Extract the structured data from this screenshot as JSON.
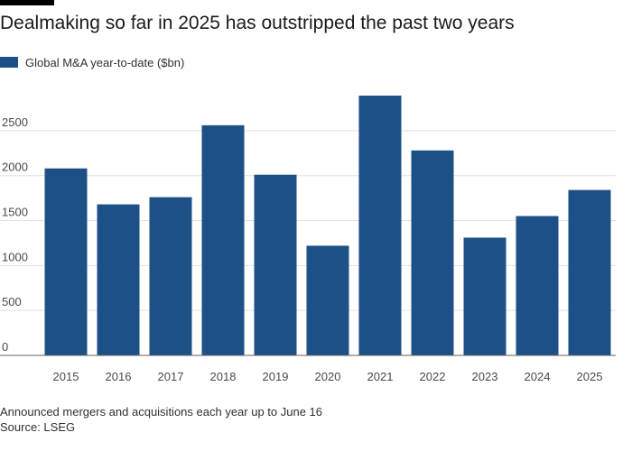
{
  "title": "Dealmaking so far in 2025 has outstripped the past two years",
  "legend": {
    "label": "Global M&A year-to-date ($bn)"
  },
  "colors": {
    "bar": "#1d5086",
    "grid": "#e6e1dc",
    "axis": "#66605c"
  },
  "chart_data": {
    "type": "bar",
    "categories": [
      "2015",
      "2016",
      "2017",
      "2018",
      "2019",
      "2020",
      "2021",
      "2022",
      "2023",
      "2024",
      "2025"
    ],
    "series": [
      {
        "name": "Global M&A year-to-date ($bn)",
        "values": [
          2080,
          1680,
          1760,
          2560,
          2010,
          1220,
          2890,
          2280,
          1310,
          1550,
          1840
        ]
      }
    ],
    "ylim": [
      0,
      2900
    ],
    "yticks": [
      0,
      500,
      1000,
      1500,
      2000,
      2500
    ],
    "grid": true,
    "legend_position": "top-left"
  },
  "footer": {
    "note": "Announced mergers and acquisitions each year up to June 16",
    "source": "Source: LSEG"
  }
}
